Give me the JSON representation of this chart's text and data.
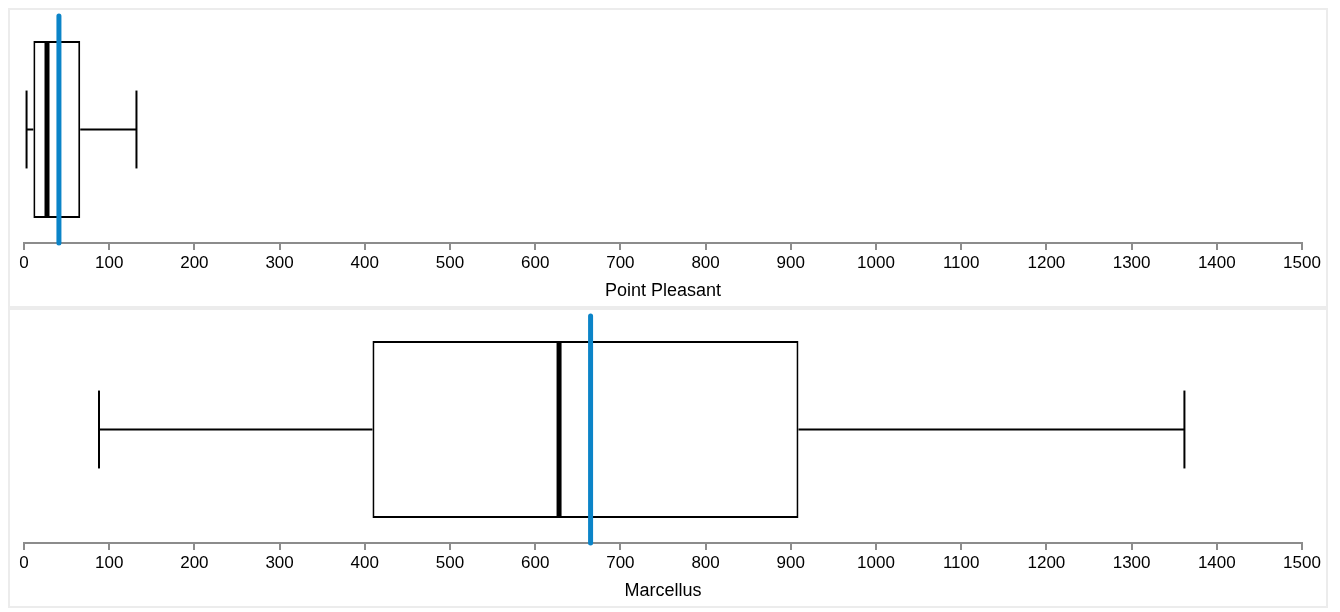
{
  "chart_data": [
    {
      "type": "box",
      "orientation": "horizontal",
      "categories": [
        null
      ],
      "boxes": [
        {
          "low": 3,
          "q1": 11,
          "median": 27,
          "q3": 66,
          "high": 132
        }
      ],
      "color": "#000000",
      "xlim": [
        0,
        1500
      ],
      "xticks": [
        0,
        100,
        200,
        300,
        400,
        500,
        600,
        700,
        800,
        900,
        1000,
        1100,
        1200,
        1300,
        1400,
        1500
      ],
      "xlabel": "Point Pleasant",
      "ref_lines": [
        {
          "axis": "x",
          "value": 41,
          "color": "#0b84c8"
        }
      ],
      "grid": false,
      "tick_labels": "x"
    },
    {
      "type": "box",
      "orientation": "horizontal",
      "categories": [
        null
      ],
      "boxes": [
        {
          "low": 88,
          "q1": 409,
          "median": 628,
          "q3": 909,
          "high": 1362
        }
      ],
      "color": "#000000",
      "xlim": [
        0,
        1500
      ],
      "xticks": [
        0,
        100,
        200,
        300,
        400,
        500,
        600,
        700,
        800,
        900,
        1000,
        1100,
        1200,
        1300,
        1400,
        1500
      ],
      "xlabel": "Marcellus",
      "ref_lines": [
        {
          "axis": "x",
          "value": 665,
          "color": "#0b84c8"
        }
      ],
      "grid": false,
      "tick_labels": "x"
    }
  ]
}
